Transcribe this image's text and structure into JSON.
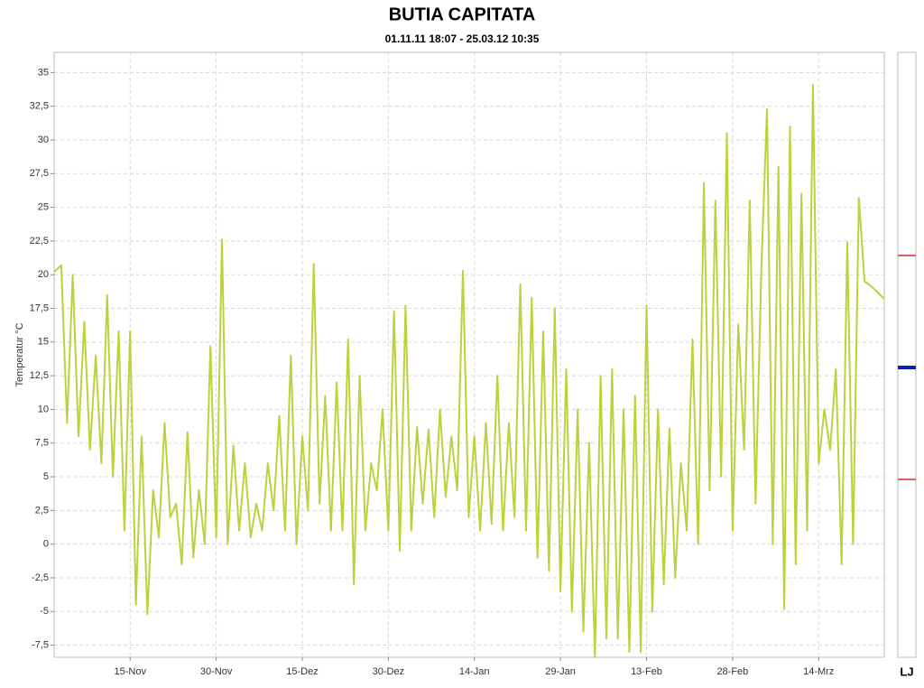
{
  "chart_data": {
    "type": "line",
    "title": "BUTIA CAPITATA",
    "subtitle": "01.11.11 18:07 - 25.03.12 10:35",
    "y_label": "Temperatur  °C",
    "legend_label": "LJ",
    "grid": true,
    "xlim": [
      "2011-11-01T18:07",
      "2012-03-25T10:35"
    ],
    "xticks": [
      {
        "value": "2011-11-15",
        "label": "15-Nov"
      },
      {
        "value": "2011-11-30",
        "label": "30-Nov"
      },
      {
        "value": "2011-12-15",
        "label": "15-Dez"
      },
      {
        "value": "2011-12-30",
        "label": "30-Dez"
      },
      {
        "value": "2012-01-14",
        "label": "14-Jan"
      },
      {
        "value": "2012-01-29",
        "label": "29-Jan"
      },
      {
        "value": "2012-02-13",
        "label": "13-Feb"
      },
      {
        "value": "2012-02-28",
        "label": "28-Feb"
      },
      {
        "value": "2012-03-14",
        "label": "14-Mrz"
      }
    ],
    "ylim": [
      -8.4,
      36.5
    ],
    "yticks": [
      {
        "value": -7.5,
        "label": "-7,5"
      },
      -5,
      {
        "value": -2.5,
        "label": "-2,5"
      },
      0,
      {
        "value": 2.5,
        "label": "2,5"
      },
      5,
      {
        "value": 7.5,
        "label": "7,5"
      },
      10,
      {
        "value": 12.5,
        "label": "12,5"
      },
      15,
      {
        "value": 17.5,
        "label": "17,5"
      },
      20,
      {
        "value": 22.5,
        "label": "22,5"
      },
      25,
      {
        "value": 27.5,
        "label": "27,5"
      },
      30,
      {
        "value": 32.5,
        "label": "32,5"
      },
      35
    ],
    "x": [
      "2011-11-01T18:07",
      "2011-11-02",
      "2011-11-03",
      "2011-11-04",
      "2011-11-05",
      "2011-11-06",
      "2011-11-07",
      "2011-11-08",
      "2011-11-09",
      "2011-11-10",
      "2011-11-11",
      "2011-11-12",
      "2011-11-13",
      "2011-11-14",
      "2011-11-15",
      "2011-11-16",
      "2011-11-17",
      "2011-11-18",
      "2011-11-19",
      "2011-11-20",
      "2011-11-21",
      "2011-11-22",
      "2011-11-23",
      "2011-11-24",
      "2011-11-25",
      "2011-11-26",
      "2011-11-27",
      "2011-11-28",
      "2011-11-29",
      "2011-11-30",
      "2011-12-01",
      "2011-12-02",
      "2011-12-03",
      "2011-12-04",
      "2011-12-05",
      "2011-12-06",
      "2011-12-07",
      "2011-12-08",
      "2011-12-09",
      "2011-12-10",
      "2011-12-11",
      "2011-12-12",
      "2011-12-13",
      "2011-12-14",
      "2011-12-15",
      "2011-12-16",
      "2011-12-17",
      "2011-12-18",
      "2011-12-19",
      "2011-12-20",
      "2011-12-21",
      "2011-12-22",
      "2011-12-23",
      "2011-12-24",
      "2011-12-25",
      "2011-12-26",
      "2011-12-27",
      "2011-12-28",
      "2011-12-29",
      "2011-12-30",
      "2011-12-31",
      "2012-01-01",
      "2012-01-02",
      "2012-01-03",
      "2012-01-04",
      "2012-01-05",
      "2012-01-06",
      "2012-01-07",
      "2012-01-08",
      "2012-01-09",
      "2012-01-10",
      "2012-01-11",
      "2012-01-12",
      "2012-01-13",
      "2012-01-14",
      "2012-01-15",
      "2012-01-16",
      "2012-01-17",
      "2012-01-18",
      "2012-01-19",
      "2012-01-20",
      "2012-01-21",
      "2012-01-22",
      "2012-01-23",
      "2012-01-24",
      "2012-01-25",
      "2012-01-26",
      "2012-01-27",
      "2012-01-28",
      "2012-01-29",
      "2012-01-30",
      "2012-01-31",
      "2012-02-01",
      "2012-02-02",
      "2012-02-03",
      "2012-02-04",
      "2012-02-05",
      "2012-02-06",
      "2012-02-07",
      "2012-02-08",
      "2012-02-09",
      "2012-02-10",
      "2012-02-11",
      "2012-02-12",
      "2012-02-13",
      "2012-02-14",
      "2012-02-15",
      "2012-02-16",
      "2012-02-17",
      "2012-02-18",
      "2012-02-19",
      "2012-02-20",
      "2012-02-21",
      "2012-02-22",
      "2012-02-23",
      "2012-02-24",
      "2012-02-25",
      "2012-02-26",
      "2012-02-27",
      "2012-02-28",
      "2012-02-29",
      "2012-03-01",
      "2012-03-02",
      "2012-03-03",
      "2012-03-04",
      "2012-03-05",
      "2012-03-06",
      "2012-03-07",
      "2012-03-08",
      "2012-03-09",
      "2012-03-10",
      "2012-03-11",
      "2012-03-12",
      "2012-03-13",
      "2012-03-14",
      "2012-03-15",
      "2012-03-16",
      "2012-03-17",
      "2012-03-18",
      "2012-03-19",
      "2012-03-20",
      "2012-03-21",
      "2012-03-22",
      "2012-03-23",
      "2012-03-24",
      "2012-03-25T10:35"
    ],
    "series": [
      {
        "color": "#b8d43c",
        "values": [
          20.2,
          20.3,
          20.7,
          9,
          20,
          8,
          16.5,
          7,
          14,
          6,
          18.5,
          5,
          15.8,
          1,
          15.8,
          -4.5,
          8,
          -5.2,
          4,
          0.5,
          9,
          2,
          3,
          -1.5,
          8.3,
          -1,
          4,
          0,
          14.7,
          0.5,
          22.6,
          0,
          7.3,
          1,
          6,
          0.5,
          3,
          1,
          6,
          2.5,
          9.5,
          1,
          14,
          0,
          8,
          2.5,
          20.8,
          3,
          11,
          1,
          12,
          1,
          15.2,
          -3,
          12.5,
          1,
          6,
          4,
          10,
          1,
          17.3,
          -0.5,
          17.7,
          1,
          8.7,
          3,
          8.5,
          2,
          10,
          3.5,
          8,
          4,
          20.3,
          2,
          8,
          1,
          9,
          1.5,
          12.5,
          1,
          9,
          2,
          19.3,
          1,
          18.3,
          -1,
          15.8,
          -2,
          17.5,
          -3.5,
          13,
          -5,
          10,
          -6.5,
          7.5,
          -8.4,
          12.5,
          -7,
          13,
          -7,
          10,
          -8,
          11,
          -8,
          17.7,
          -5,
          10,
          -3,
          8.6,
          -2.5,
          6,
          1,
          15.2,
          0,
          26.8,
          4,
          25.5,
          5,
          30.5,
          1,
          16.3,
          7,
          25.5,
          3,
          20.3,
          32.3,
          0,
          28,
          -4.8,
          31,
          -1.5,
          26,
          1,
          34.1,
          6,
          10,
          7,
          13,
          -1.5,
          22.4,
          0,
          25.7,
          19.5,
          19.2,
          18.8,
          18.2
        ]
      }
    ]
  }
}
